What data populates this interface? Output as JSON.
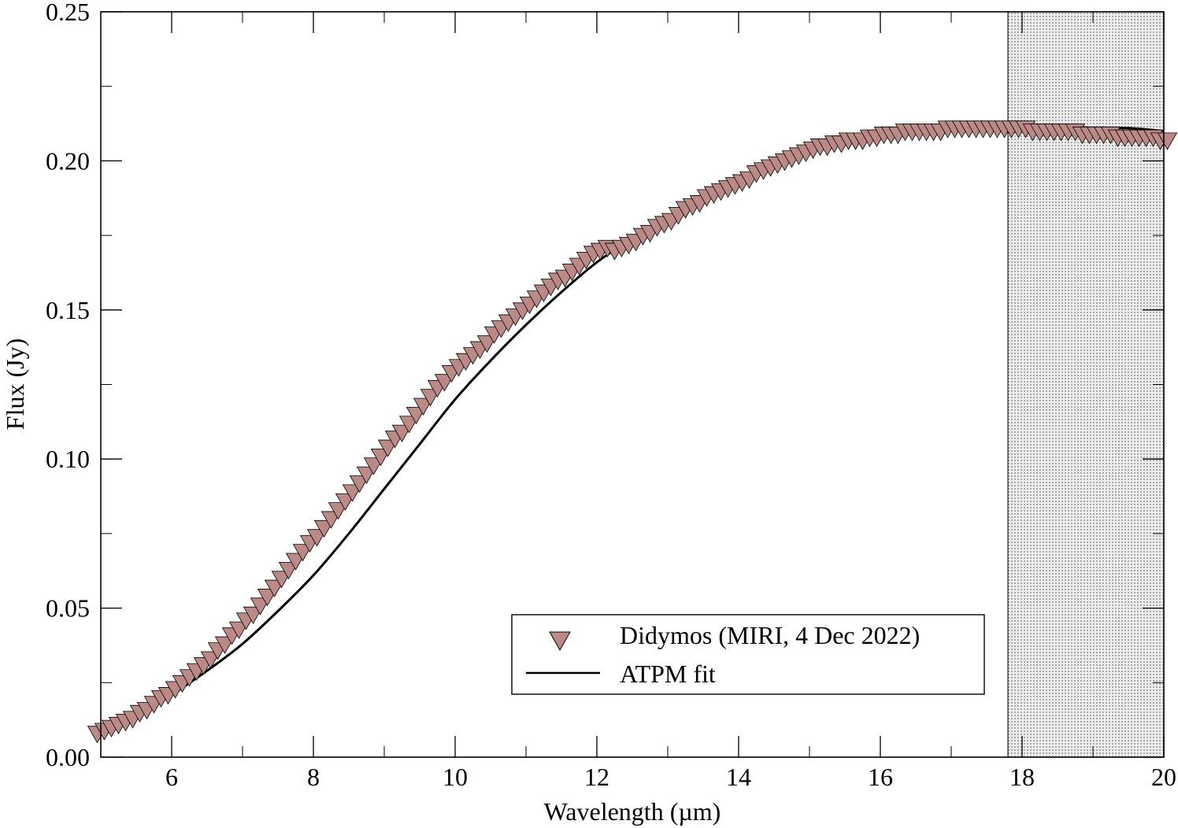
{
  "chart_data": {
    "type": "scatter",
    "xlabel": "Wavelength (µm)",
    "ylabel": "Flux (Jy)",
    "xlim": [
      5,
      20
    ],
    "ylim": [
      0,
      0.25
    ],
    "xticks": [
      6,
      8,
      10,
      12,
      14,
      16,
      18,
      20
    ],
    "xtick_labels": [
      "6",
      "8",
      "10",
      "12",
      "14",
      "16",
      "18",
      "20"
    ],
    "yticks": [
      0,
      0.05,
      0.1,
      0.15,
      0.2,
      0.25
    ],
    "ytick_labels": [
      "0.00",
      "0.05",
      "0.10",
      "0.15",
      "0.20",
      "0.25"
    ],
    "x_minor_step": 1,
    "y_minor_step": 0.025,
    "grid": false,
    "legend_position": "bottom-right",
    "shaded_region": {
      "x": [
        17.8,
        20
      ],
      "color": "#c8c8c8"
    },
    "marker_color": "#bc8a86",
    "series": [
      {
        "name": "Didymos (MIRI, 4 Dec 2022)",
        "kind": "scatter",
        "marker": "triangle-down",
        "x": [
          4.95,
          5.05,
          5.15,
          5.25,
          5.35,
          5.45,
          5.55,
          5.65,
          5.75,
          5.85,
          5.95,
          6.05,
          6.15,
          6.25,
          6.35,
          6.45,
          6.55,
          6.65,
          6.75,
          6.85,
          6.95,
          7.05,
          7.15,
          7.25,
          7.35,
          7.45,
          7.55,
          7.65,
          7.75,
          7.85,
          7.95,
          8.05,
          8.15,
          8.25,
          8.35,
          8.45,
          8.55,
          8.65,
          8.75,
          8.85,
          8.95,
          9.05,
          9.15,
          9.25,
          9.35,
          9.45,
          9.55,
          9.65,
          9.75,
          9.85,
          9.95,
          10.05,
          10.15,
          10.25,
          10.35,
          10.45,
          10.55,
          10.65,
          10.75,
          10.85,
          10.95,
          11.05,
          11.15,
          11.25,
          11.35,
          11.45,
          11.55,
          11.65,
          11.75,
          11.85,
          11.95,
          12.05,
          12.15,
          12.25,
          12.35,
          12.45,
          12.55,
          12.65,
          12.75,
          12.85,
          12.95,
          13.05,
          13.15,
          13.25,
          13.35,
          13.45,
          13.55,
          13.65,
          13.75,
          13.85,
          13.95,
          14.05,
          14.15,
          14.25,
          14.35,
          14.45,
          14.55,
          14.65,
          14.75,
          14.85,
          14.95,
          15.05,
          15.15,
          15.25,
          15.35,
          15.45,
          15.55,
          15.65,
          15.75,
          15.85,
          15.95,
          16.05,
          16.15,
          16.25,
          16.35,
          16.45,
          16.55,
          16.65,
          16.75,
          16.85,
          16.95,
          17.05,
          17.15,
          17.25,
          17.35,
          17.45,
          17.55,
          17.65,
          17.75,
          17.85,
          17.95,
          18.05,
          18.15,
          18.25,
          18.35,
          18.45,
          18.55,
          18.65,
          18.75,
          18.85,
          18.95,
          19.05,
          19.15,
          19.25,
          19.35,
          19.45,
          19.55,
          19.65,
          19.75,
          19.85,
          19.95,
          20.05
        ],
        "y": [
          0.008,
          0.009,
          0.01,
          0.011,
          0.012,
          0.013,
          0.015,
          0.016,
          0.018,
          0.02,
          0.021,
          0.023,
          0.025,
          0.027,
          0.029,
          0.031,
          0.033,
          0.036,
          0.038,
          0.041,
          0.043,
          0.046,
          0.048,
          0.051,
          0.054,
          0.057,
          0.06,
          0.063,
          0.066,
          0.069,
          0.072,
          0.074,
          0.077,
          0.08,
          0.083,
          0.086,
          0.089,
          0.092,
          0.095,
          0.098,
          0.101,
          0.104,
          0.107,
          0.109,
          0.112,
          0.115,
          0.118,
          0.121,
          0.124,
          0.126,
          0.129,
          0.131,
          0.133,
          0.135,
          0.137,
          0.139,
          0.142,
          0.144,
          0.146,
          0.148,
          0.15,
          0.152,
          0.154,
          0.156,
          0.158,
          0.16,
          0.161,
          0.163,
          0.165,
          0.167,
          0.169,
          0.17,
          0.171,
          0.17,
          0.171,
          0.172,
          0.173,
          0.175,
          0.176,
          0.178,
          0.179,
          0.18,
          0.182,
          0.184,
          0.185,
          0.186,
          0.188,
          0.189,
          0.19,
          0.191,
          0.192,
          0.193,
          0.194,
          0.196,
          0.197,
          0.198,
          0.199,
          0.2,
          0.201,
          0.202,
          0.203,
          0.204,
          0.205,
          0.205,
          0.206,
          0.206,
          0.207,
          0.207,
          0.207,
          0.208,
          0.208,
          0.209,
          0.209,
          0.209,
          0.21,
          0.21,
          0.21,
          0.21,
          0.21,
          0.21,
          0.211,
          0.211,
          0.211,
          0.211,
          0.211,
          0.211,
          0.211,
          0.211,
          0.211,
          0.211,
          0.211,
          0.211,
          0.21,
          0.21,
          0.21,
          0.21,
          0.21,
          0.21,
          0.21,
          0.209,
          0.209,
          0.209,
          0.209,
          0.209,
          0.208,
          0.208,
          0.208,
          0.208,
          0.208,
          0.208,
          0.207,
          0.207
        ]
      },
      {
        "name": "ATPM fit",
        "kind": "line",
        "color": "#000000",
        "x": [
          5,
          5.5,
          6,
          6.5,
          7,
          7.5,
          8,
          8.5,
          9,
          9.5,
          10,
          10.5,
          11,
          11.5,
          12,
          12.5,
          13,
          13.5,
          14,
          14.5,
          15,
          15.5,
          16,
          16.5,
          17,
          17.5,
          18,
          18.5,
          19,
          19.5,
          20
        ],
        "y": [
          0.008,
          0.014,
          0.021,
          0.029,
          0.038,
          0.049,
          0.061,
          0.075,
          0.09,
          0.105,
          0.12,
          0.133,
          0.145,
          0.156,
          0.166,
          0.174,
          0.181,
          0.188,
          0.194,
          0.199,
          0.203,
          0.206,
          0.208,
          0.21,
          0.211,
          0.212,
          0.212,
          0.212,
          0.211,
          0.211,
          0.21
        ]
      }
    ]
  }
}
